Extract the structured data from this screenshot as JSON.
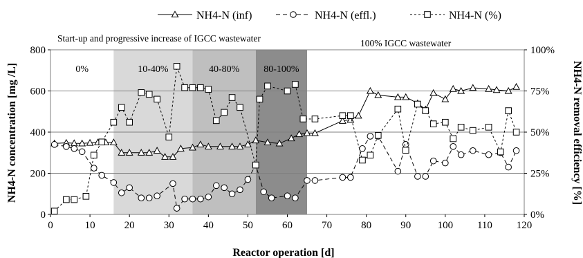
{
  "chart_data": {
    "type": "line",
    "xlabel": "Reactor operation [d]",
    "ylabel_left": "NH4-N concentration [mg /L]",
    "ylabel_right": "NH4-N removal efficiency [%]",
    "xlim": [
      0,
      120
    ],
    "xticks": [
      0,
      10,
      20,
      30,
      40,
      50,
      60,
      70,
      80,
      90,
      100,
      110,
      120
    ],
    "ylim_left": [
      0,
      800
    ],
    "yticks_left": [
      0,
      200,
      400,
      600,
      800
    ],
    "ylim_right": [
      0,
      100
    ],
    "yticks_right": [
      "0%",
      "25%",
      "50%",
      "75%",
      "100%"
    ],
    "grid": "horizontal",
    "legend": {
      "placement": "top",
      "entries": [
        "NH4-N (inf)",
        "NH4-N (effl.)",
        "NH4-N (%)"
      ]
    },
    "annotations": {
      "startup": "Start-up and progressive increase of IGCC wastewater",
      "full": "100% IGCC wastewater"
    },
    "phases": [
      {
        "label": "0%",
        "x_start": 0,
        "x_end": 16,
        "color": "#ffffff"
      },
      {
        "label": "10-40%",
        "x_start": 16,
        "x_end": 36,
        "color": "#d9d9d9"
      },
      {
        "label": "40-80%",
        "x_start": 36,
        "x_end": 52,
        "color": "#bfbfbf"
      },
      {
        "label": "80-100%",
        "x_start": 52,
        "x_end": 65,
        "color": "#8c8c8c"
      }
    ],
    "series": [
      {
        "name": "NH4-N (inf)",
        "axis": "left",
        "marker": "triangle",
        "line": "solid",
        "x": [
          1,
          4,
          6,
          8,
          10,
          12,
          14,
          16,
          18,
          20,
          23,
          25,
          27,
          29,
          31,
          33,
          36,
          38,
          40,
          43,
          46,
          48,
          50,
          52,
          55,
          58,
          61,
          63,
          65,
          67,
          74,
          76,
          78,
          81,
          83,
          88,
          90,
          93,
          95,
          97,
          100,
          102,
          104,
          107,
          111,
          113,
          116,
          118
        ],
        "values": [
          345,
          348,
          346,
          345,
          348,
          350,
          350,
          350,
          300,
          300,
          300,
          300,
          310,
          280,
          280,
          320,
          325,
          340,
          330,
          330,
          330,
          330,
          340,
          360,
          350,
          345,
          370,
          390,
          395,
          395,
          455,
          460,
          480,
          600,
          580,
          570,
          570,
          540,
          510,
          590,
          560,
          610,
          600,
          615,
          610,
          605,
          600,
          620
        ]
      },
      {
        "name": "NH4-N (effl.)",
        "axis": "left",
        "marker": "circle",
        "line": "dashed",
        "x": [
          1,
          4,
          6,
          8,
          11,
          13,
          16,
          18,
          20,
          23,
          25,
          27,
          31,
          32,
          34,
          36,
          38,
          40,
          42,
          44,
          46,
          48,
          50,
          52,
          54,
          56,
          60,
          62,
          65,
          67,
          74,
          76,
          79,
          81,
          83,
          88,
          90,
          93,
          95,
          97,
          100,
          102,
          104,
          107,
          111,
          114,
          116,
          118
        ],
        "values": [
          340,
          330,
          320,
          305,
          225,
          190,
          155,
          105,
          130,
          80,
          80,
          90,
          150,
          30,
          75,
          75,
          75,
          85,
          140,
          130,
          100,
          120,
          170,
          240,
          110,
          80,
          90,
          80,
          165,
          165,
          180,
          180,
          320,
          380,
          380,
          210,
          340,
          185,
          185,
          260,
          250,
          330,
          290,
          310,
          290,
          300,
          230,
          310
        ]
      },
      {
        "name": "NH4-N (%)",
        "axis": "right",
        "marker": "square",
        "line": "dotted",
        "x": [
          1,
          4,
          6,
          9,
          11,
          13,
          16,
          18,
          20,
          23,
          25,
          27,
          30,
          32,
          34,
          36,
          38,
          40,
          42,
          44,
          46,
          48,
          52,
          53,
          55,
          60,
          62,
          64,
          67,
          74,
          76,
          79,
          81,
          83,
          88,
          90,
          93,
          95,
          97,
          100,
          102,
          104,
          107,
          111,
          114,
          116,
          118
        ],
        "values": [
          2,
          9,
          9,
          11,
          36,
          44,
          56,
          65,
          56,
          74,
          73,
          70,
          47,
          90,
          77,
          77,
          77,
          76,
          57,
          62,
          71,
          65,
          30,
          70,
          78,
          75,
          79,
          58,
          58,
          60,
          60,
          33,
          36,
          48,
          64,
          39,
          67,
          63,
          55,
          56,
          46,
          53,
          51,
          53,
          38,
          63,
          50
        ]
      }
    ]
  }
}
